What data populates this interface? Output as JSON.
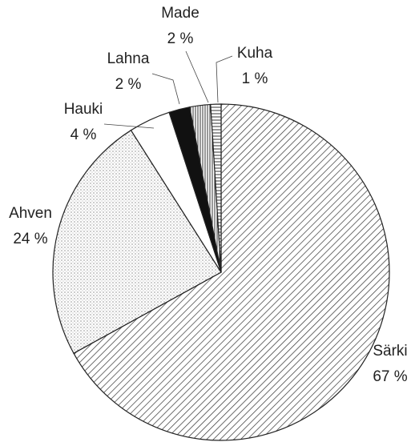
{
  "chart_data": {
    "type": "pie",
    "categories": [
      "Särki",
      "Ahven",
      "Hauki",
      "Lahna",
      "Made",
      "Kuha"
    ],
    "values": [
      67,
      24,
      4,
      2,
      2,
      1
    ],
    "value_labels": [
      "67 %",
      "24 %",
      "4 %",
      "2 %",
      "2 %",
      "1 %"
    ]
  }
}
